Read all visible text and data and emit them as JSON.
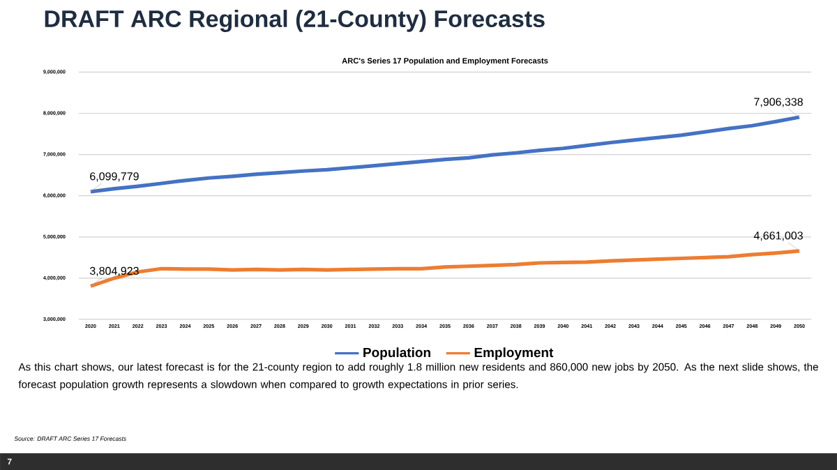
{
  "chart_data": {
    "type": "line",
    "title": "DRAFT ARC Regional (21-County) Forecasts",
    "subtitle": "ARC's Series 17 Population and Employment Forecasts",
    "categories": [
      "2020",
      "2021",
      "2022",
      "2023",
      "2024",
      "2025",
      "2026",
      "2027",
      "2028",
      "2029",
      "2030",
      "2031",
      "2032",
      "2033",
      "2034",
      "2035",
      "2036",
      "2037",
      "2038",
      "2039",
      "2040",
      "2041",
      "2042",
      "2043",
      "2044",
      "2045",
      "2046",
      "2047",
      "2048",
      "2049",
      "2050"
    ],
    "series": [
      {
        "name": "Population",
        "color": "#4472c4",
        "values": [
          6099779,
          6170000,
          6230000,
          6300000,
          6370000,
          6430000,
          6470000,
          6520000,
          6560000,
          6600000,
          6630000,
          6680000,
          6730000,
          6780000,
          6830000,
          6880000,
          6920000,
          6990000,
          7040000,
          7100000,
          7150000,
          7220000,
          7290000,
          7350000,
          7410000,
          7470000,
          7550000,
          7630000,
          7700000,
          7800000,
          7906338
        ],
        "value_labels": [
          "6,099,779",
          null,
          null,
          null,
          null,
          null,
          null,
          null,
          null,
          null,
          null,
          null,
          null,
          null,
          null,
          null,
          null,
          null,
          null,
          null,
          null,
          null,
          null,
          null,
          null,
          null,
          null,
          null,
          null,
          null,
          "7,906,338"
        ]
      },
      {
        "name": "Employment",
        "color": "#ed7d31",
        "values": [
          3804923,
          4000000,
          4150000,
          4230000,
          4220000,
          4220000,
          4200000,
          4210000,
          4200000,
          4210000,
          4200000,
          4210000,
          4220000,
          4230000,
          4230000,
          4270000,
          4290000,
          4310000,
          4330000,
          4370000,
          4380000,
          4390000,
          4420000,
          4440000,
          4460000,
          4480000,
          4500000,
          4520000,
          4570000,
          4610000,
          4661003
        ],
        "value_labels": [
          "3,804,923",
          null,
          null,
          null,
          null,
          null,
          null,
          null,
          null,
          null,
          null,
          null,
          null,
          null,
          null,
          null,
          null,
          null,
          null,
          null,
          null,
          null,
          null,
          null,
          null,
          null,
          null,
          null,
          null,
          null,
          "4,661,003"
        ]
      }
    ],
    "ylim": [
      3000000,
      9000000
    ],
    "yticks": [
      {
        "value": 3000000,
        "label": "3,000,000"
      },
      {
        "value": 4000000,
        "label": "4,000,000"
      },
      {
        "value": 5000000,
        "label": "5,000,000"
      },
      {
        "value": 6000000,
        "label": "6,000,000"
      },
      {
        "value": 7000000,
        "label": "7,000,000"
      },
      {
        "value": 8000000,
        "label": "8,000,000"
      },
      {
        "value": 9000000,
        "label": "9,000,000"
      }
    ],
    "grid": "y",
    "legend": "bottom",
    "line_style": "solid",
    "annotations": [
      "As this chart shows, our latest forecast is for the 21-county region to add roughly 1.8 million new residents and 860,000 new jobs by 2050. As the next slide shows, the forecast population growth represents a slowdown when compared to growth expectations in prior series.",
      "Source: DRAFT ARC Series 17 Forecasts",
      "7"
    ]
  }
}
